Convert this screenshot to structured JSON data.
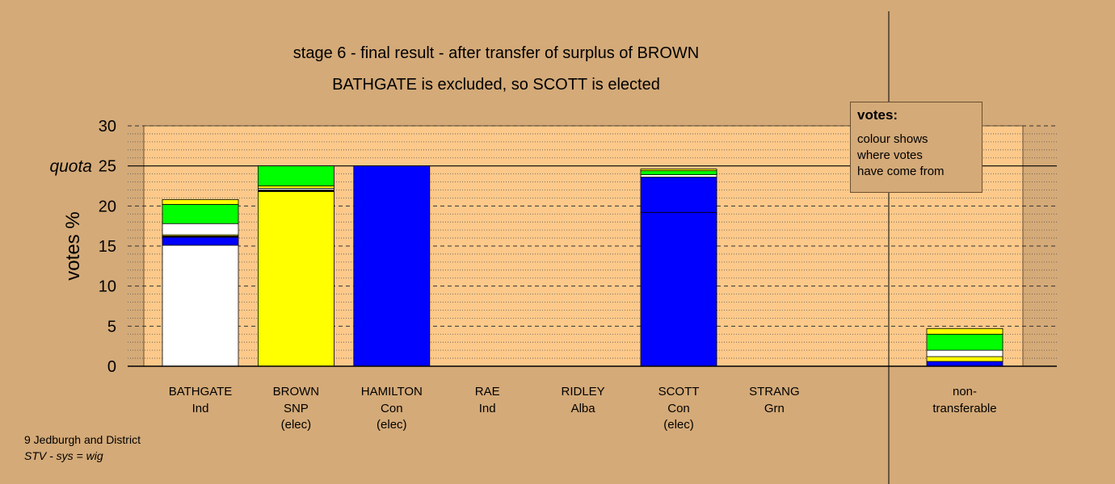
{
  "header": {
    "title_line1": "stage 6 - final result - after transfer of surplus of BROWN",
    "title_line2": "BATHGATE is excluded, so SCOTT is elected"
  },
  "legend": {
    "title": "votes:",
    "lines": [
      "colour shows",
      "where votes",
      "have come from"
    ]
  },
  "footer": {
    "ward": "9 Jedburgh and District",
    "system": "STV - sys = wig"
  },
  "colors": {
    "background": "#d4aa78",
    "plot_area": "#fcc98a",
    "Ind": "#ffffff",
    "SNP": "#ffff00",
    "Con": "#0000ff",
    "Grn": "#00ff00",
    "Alba": "#000000"
  },
  "chart_data": {
    "type": "bar",
    "stacked": true,
    "ylabel": "votes %",
    "ylim": [
      0,
      30
    ],
    "yticks": [
      "0",
      "5",
      "10",
      "15",
      "20",
      "25",
      "30"
    ],
    "quota": {
      "label": "quota",
      "value": 25
    },
    "grid": true,
    "candidates": [
      {
        "name": "BATHGATE",
        "party": "Ind",
        "status": "",
        "segments": [
          {
            "source": "Ind",
            "color": "#ffffff",
            "value": 15.1
          },
          {
            "source": "Con",
            "color": "#0000ff",
            "value": 1.0
          },
          {
            "source": "Alba",
            "color": "#000000",
            "value": 0.15
          },
          {
            "source": "SNP",
            "color": "#ffff00",
            "value": 0.15
          },
          {
            "source": "Ind",
            "color": "#ffffff",
            "value": 1.4
          },
          {
            "source": "Grn",
            "color": "#00ff00",
            "value": 2.4
          },
          {
            "source": "SNP",
            "color": "#ffff00",
            "value": 0.6
          }
        ]
      },
      {
        "name": "BROWN",
        "party": "SNP",
        "status": "(elec)",
        "segments": [
          {
            "source": "SNP",
            "color": "#ffff00",
            "value": 21.8
          },
          {
            "source": "Alba",
            "color": "#000000",
            "value": 0.2
          },
          {
            "source": "Ind",
            "color": "#ffffff",
            "value": 0.2
          },
          {
            "source": "SNP",
            "color": "#ffff00",
            "value": 0.3
          },
          {
            "source": "Grn",
            "color": "#00ff00",
            "value": 2.5
          }
        ]
      },
      {
        "name": "HAMILTON",
        "party": "Con",
        "status": "(elec)",
        "segments": [
          {
            "source": "Con",
            "color": "#0000ff",
            "value": 25.0
          }
        ]
      },
      {
        "name": "RAE",
        "party": "Ind",
        "status": "",
        "segments": []
      },
      {
        "name": "RIDLEY",
        "party": "Alba",
        "status": "",
        "segments": []
      },
      {
        "name": "SCOTT",
        "party": "Con",
        "status": "(elec)",
        "segments": [
          {
            "source": "Con",
            "color": "#0000ff",
            "value": 19.2
          },
          {
            "source": "Con",
            "color": "#0000ff",
            "value": 4.4
          },
          {
            "source": "Ind",
            "color": "#ffffff",
            "value": 0.3
          },
          {
            "source": "Grn",
            "color": "#00ff00",
            "value": 0.5
          },
          {
            "source": "SNP",
            "color": "#ffff00",
            "value": 0.2
          }
        ]
      },
      {
        "name": "STRANG",
        "party": "Grn",
        "status": "",
        "segments": []
      }
    ],
    "nontransferable": {
      "label_line1": "non-",
      "label_line2": "transferable",
      "segments": [
        {
          "source": "Con",
          "color": "#0000ff",
          "value": 0.6
        },
        {
          "source": "SNP",
          "color": "#ffff00",
          "value": 0.6
        },
        {
          "source": "Ind",
          "color": "#ffffff",
          "value": 0.8
        },
        {
          "source": "Grn",
          "color": "#00ff00",
          "value": 2.0
        },
        {
          "source": "SNP",
          "color": "#ffff00",
          "value": 0.7
        }
      ]
    }
  }
}
